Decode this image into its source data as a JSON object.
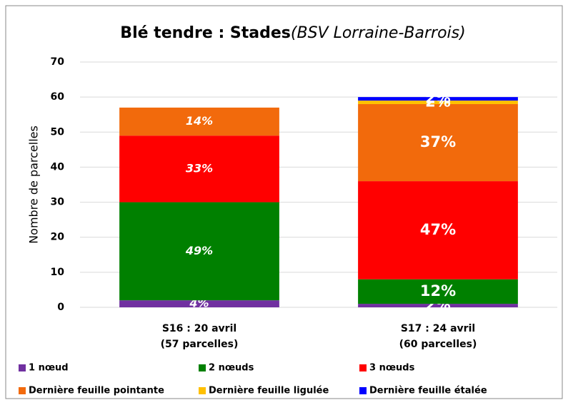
{
  "chart_data": {
    "type": "stacked_bar",
    "title": "Blé tendre : Stades",
    "subtitle": "(BSV Lorraine-Barrois)",
    "y_label": "Nombre de parcelles",
    "categories": [
      [
        "S16 : 20 avril",
        "(57 parcelles)"
      ],
      [
        "S17 : 24 avril",
        "(60 parcelles)"
      ]
    ],
    "ylim": [
      0,
      70
    ],
    "yticks": [
      0,
      10,
      20,
      30,
      40,
      50,
      60,
      70
    ],
    "grid": true,
    "legend": "bottom",
    "series": [
      {
        "name": "1 nœud",
        "color": "#7030a0",
        "values": [
          2,
          1
        ],
        "value_labels": [
          "4%",
          "2%"
        ]
      },
      {
        "name": "2 nœuds",
        "color": "#008000",
        "values": [
          28,
          7
        ],
        "value_labels": [
          "49%",
          "12%"
        ]
      },
      {
        "name": "3 nœuds",
        "color": "#ff0000",
        "values": [
          19,
          28
        ],
        "value_labels": [
          "33%",
          "47%"
        ]
      },
      {
        "name": "Dernière feuille pointante",
        "color": "#f26a0c",
        "values": [
          8,
          22
        ],
        "value_labels": [
          "14%",
          "37%"
        ]
      },
      {
        "name": "Dernière feuille ligulée",
        "color": "#ffc000",
        "values": [
          0,
          1
        ],
        "value_labels": [
          null,
          "2%"
        ]
      },
      {
        "name": "Dernière feuille étalée",
        "color": "#0000ff",
        "values": [
          0,
          1
        ],
        "value_labels": [
          null,
          "2%"
        ]
      }
    ]
  }
}
